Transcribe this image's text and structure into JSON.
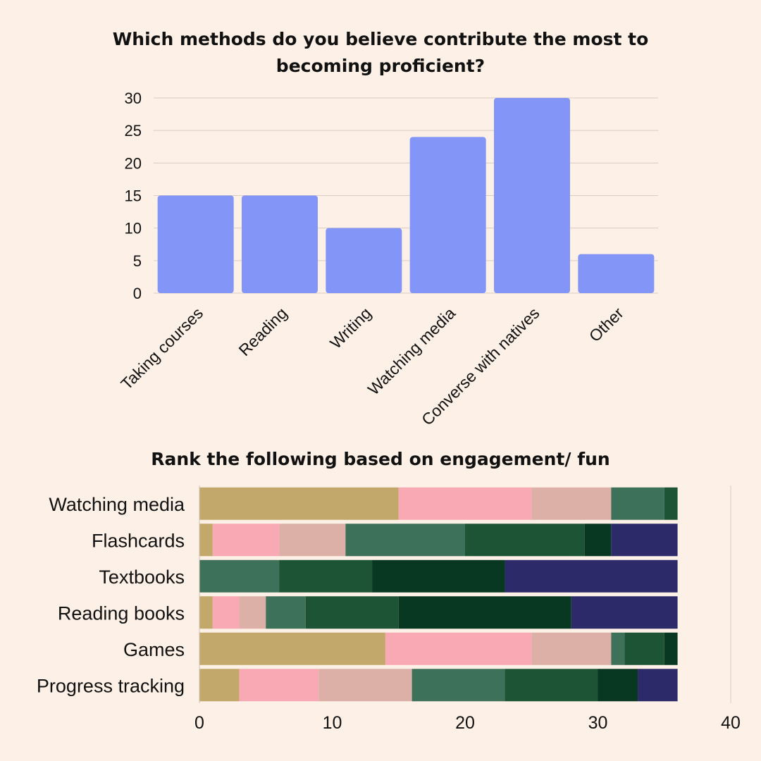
{
  "chart_data": [
    {
      "type": "bar",
      "title": "Which methods do you believe contribute the most to becoming proficient?",
      "categories": [
        "Taking courses",
        "Reading",
        "Writing",
        "Watching media",
        "Converse with natives",
        "Other"
      ],
      "values": [
        15,
        15,
        10,
        24,
        30,
        6
      ],
      "ylim": [
        0,
        30
      ],
      "yticks": [
        "0",
        "5",
        "10",
        "15",
        "20",
        "25",
        "30"
      ],
      "grid": true,
      "color": "#8396f7"
    },
    {
      "type": "bar",
      "orientation": "horizontal-stacked",
      "title": "Rank the following based on engagement/ fun",
      "categories": [
        "Watching media",
        "Flashcards",
        "Textbooks",
        "Reading books",
        "Games",
        "Progress tracking"
      ],
      "series": [
        {
          "color": "#c2a96b",
          "values": [
            15,
            1,
            0,
            1,
            14,
            3
          ]
        },
        {
          "color": "#f8a9b3",
          "values": [
            10,
            5,
            0,
            2,
            11,
            6
          ]
        },
        {
          "color": "#dcb0a7",
          "values": [
            6,
            5,
            0,
            2,
            6,
            7
          ]
        },
        {
          "color": "#3e7159",
          "values": [
            4,
            9,
            6,
            3,
            1,
            7
          ]
        },
        {
          "color": "#1e5436",
          "values": [
            1,
            9,
            7,
            7,
            3,
            7
          ]
        },
        {
          "color": "#093822",
          "values": [
            0,
            2,
            10,
            13,
            1,
            3
          ]
        },
        {
          "color": "#2d2a6a",
          "values": [
            0,
            5,
            13,
            8,
            0,
            3
          ]
        }
      ],
      "xlim": [
        0,
        40
      ],
      "xticks": [
        "0",
        "10",
        "20",
        "30",
        "40"
      ]
    }
  ]
}
